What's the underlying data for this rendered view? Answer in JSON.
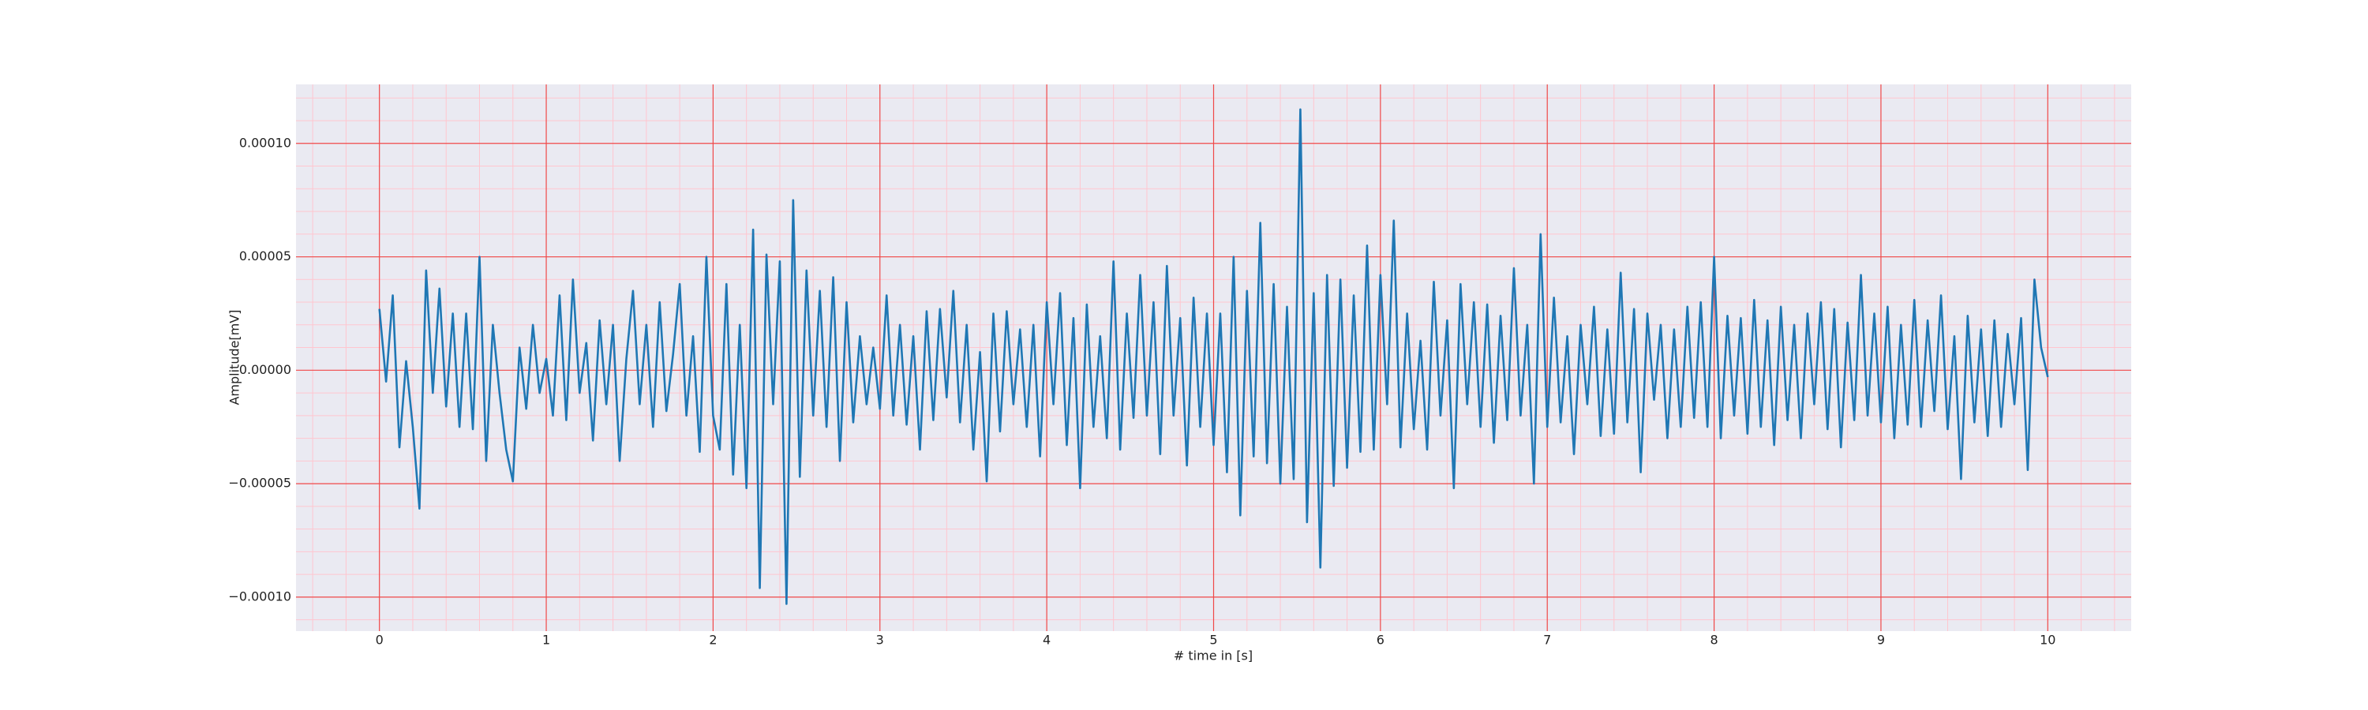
{
  "chart_data": {
    "type": "line",
    "xlabel": "# time in [s]",
    "ylabel": "Amplitude[mV]",
    "color": "#1f77b4",
    "grid": true,
    "minor_grid": true,
    "xlim": [
      -0.5,
      10.5
    ],
    "ylim": [
      -0.000115,
      0.000126
    ],
    "xticks": [
      0,
      1,
      2,
      3,
      4,
      5,
      6,
      7,
      8,
      9,
      10
    ],
    "yticks": [
      {
        "value": -0.0001,
        "label": "−0.00010"
      },
      {
        "value": -5e-05,
        "label": "−0.00005"
      },
      {
        "value": 0,
        "label": "0.00000"
      },
      {
        "value": 5e-05,
        "label": "0.00005"
      },
      {
        "value": 0.0001,
        "label": "0.00010"
      }
    ],
    "xminorticks": [
      -0.4,
      -0.2,
      0.2,
      0.4,
      0.6,
      0.8,
      1.2,
      1.4,
      1.6,
      1.8,
      2.2,
      2.4,
      2.6,
      2.8,
      3.2,
      3.4,
      3.6,
      3.8,
      4.2,
      4.4,
      4.6,
      4.8,
      5.2,
      5.4,
      5.6,
      5.8,
      6.2,
      6.4,
      6.6,
      6.8,
      7.2,
      7.4,
      7.6,
      7.8,
      8.2,
      8.4,
      8.6,
      8.8,
      9.2,
      9.4,
      9.6,
      9.8,
      10.2,
      10.4
    ],
    "yminorticks": [
      -0.00011,
      -9e-05,
      -8e-05,
      -7e-05,
      -6e-05,
      -4e-05,
      -3e-05,
      -2e-05,
      -1e-05,
      1e-05,
      2e-05,
      3e-05,
      4e-05,
      6e-05,
      7e-05,
      8e-05,
      9e-05,
      0.00011,
      0.00012
    ],
    "x": [
      0,
      0.04,
      0.08,
      0.12,
      0.16,
      0.2,
      0.24,
      0.28,
      0.32,
      0.36,
      0.4,
      0.44,
      0.48,
      0.52,
      0.56,
      0.6,
      0.64,
      0.68,
      0.72,
      0.76,
      0.8,
      0.84,
      0.88,
      0.92,
      0.96,
      1,
      1.04,
      1.08,
      1.12,
      1.16,
      1.2,
      1.24,
      1.28,
      1.32,
      1.36,
      1.4,
      1.44,
      1.48,
      1.52,
      1.56,
      1.6,
      1.64,
      1.68,
      1.72,
      1.76,
      1.8,
      1.84,
      1.88,
      1.92,
      1.96,
      2,
      2.04,
      2.08,
      2.12,
      2.16,
      2.2,
      2.24,
      2.28,
      2.32,
      2.36,
      2.4,
      2.44,
      2.48,
      2.52,
      2.56,
      2.6,
      2.64,
      2.68,
      2.72,
      2.76,
      2.8,
      2.84,
      2.88,
      2.92,
      2.96,
      3,
      3.04,
      3.08,
      3.12,
      3.16,
      3.2,
      3.24,
      3.28,
      3.32,
      3.36,
      3.4,
      3.44,
      3.48,
      3.52,
      3.56,
      3.6,
      3.64,
      3.68,
      3.72,
      3.76,
      3.8,
      3.84,
      3.88,
      3.92,
      3.96,
      4,
      4.04,
      4.08,
      4.12,
      4.16,
      4.2,
      4.24,
      4.28,
      4.32,
      4.36,
      4.4,
      4.44,
      4.48,
      4.52,
      4.56,
      4.6,
      4.64,
      4.68,
      4.72,
      4.76,
      4.8,
      4.84,
      4.88,
      4.92,
      4.96,
      5,
      5.04,
      5.08,
      5.12,
      5.16,
      5.2,
      5.24,
      5.28,
      5.32,
      5.36,
      5.4,
      5.44,
      5.48,
      5.52,
      5.56,
      5.6,
      5.64,
      5.68,
      5.72,
      5.76,
      5.8,
      5.84,
      5.88,
      5.92,
      5.96,
      6,
      6.04,
      6.08,
      6.12,
      6.16,
      6.2,
      6.24,
      6.28,
      6.32,
      6.36,
      6.4,
      6.44,
      6.48,
      6.52,
      6.56,
      6.6,
      6.64,
      6.68,
      6.72,
      6.76,
      6.8,
      6.84,
      6.88,
      6.92,
      6.96,
      7,
      7.04,
      7.08,
      7.12,
      7.16,
      7.2,
      7.24,
      7.28,
      7.32,
      7.36,
      7.4,
      7.44,
      7.48,
      7.52,
      7.56,
      7.6,
      7.64,
      7.68,
      7.72,
      7.76,
      7.8,
      7.84,
      7.88,
      7.92,
      7.96,
      8,
      8.04,
      8.08,
      8.12,
      8.16,
      8.2,
      8.24,
      8.28,
      8.32,
      8.36,
      8.4,
      8.44,
      8.48,
      8.52,
      8.56,
      8.6,
      8.64,
      8.68,
      8.72,
      8.76,
      8.8,
      8.84,
      8.88,
      8.92,
      8.96,
      9,
      9.04,
      9.08,
      9.12,
      9.16,
      9.2,
      9.24,
      9.28,
      9.32,
      9.36,
      9.4,
      9.44,
      9.48,
      9.52,
      9.56,
      9.6,
      9.64,
      9.68,
      9.72,
      9.76,
      9.8,
      9.84,
      9.88,
      9.92,
      9.96,
      10
    ],
    "values": [
      2.7e-05,
      -5e-06,
      3.3e-05,
      -3.4e-05,
      4e-06,
      -2.5e-05,
      -6.1e-05,
      4.4e-05,
      -1e-05,
      3.6e-05,
      -1.6e-05,
      2.5e-05,
      -2.5e-05,
      2.5e-05,
      -2.6e-05,
      5e-05,
      -4e-05,
      2e-05,
      -1e-05,
      -3.5e-05,
      -4.9e-05,
      1e-05,
      -1.7e-05,
      2e-05,
      -1e-05,
      5e-06,
      -2e-05,
      3.3e-05,
      -2.2e-05,
      4e-05,
      -1e-05,
      1.2e-05,
      -3.1e-05,
      2.2e-05,
      -1.5e-05,
      2e-05,
      -4e-05,
      5e-06,
      3.5e-05,
      -1.5e-05,
      2e-05,
      -2.5e-05,
      3e-05,
      -1.8e-05,
      7e-06,
      3.8e-05,
      -2e-05,
      1.5e-05,
      -3.6e-05,
      5e-05,
      -2e-05,
      -3.5e-05,
      3.8e-05,
      -4.6e-05,
      2e-05,
      -5.2e-05,
      6.2e-05,
      -9.6e-05,
      5.1e-05,
      -1.5e-05,
      4.8e-05,
      -0.000103,
      7.5e-05,
      -4.7e-05,
      4.4e-05,
      -2e-05,
      3.5e-05,
      -2.5e-05,
      4.1e-05,
      -4e-05,
      3e-05,
      -2.3e-05,
      1.5e-05,
      -1.5e-05,
      1e-05,
      -1.7e-05,
      3.3e-05,
      -2e-05,
      2e-05,
      -2.4e-05,
      1.5e-05,
      -3.5e-05,
      2.6e-05,
      -2.2e-05,
      2.7e-05,
      -1.2e-05,
      3.5e-05,
      -2.3e-05,
      2e-05,
      -3.5e-05,
      8e-06,
      -4.9e-05,
      2.5e-05,
      -2.7e-05,
      2.6e-05,
      -1.5e-05,
      1.8e-05,
      -2.5e-05,
      2e-05,
      -3.8e-05,
      3e-05,
      -1.5e-05,
      3.4e-05,
      -3.3e-05,
      2.3e-05,
      -5.2e-05,
      2.9e-05,
      -2.5e-05,
      1.5e-05,
      -3e-05,
      4.8e-05,
      -3.5e-05,
      2.5e-05,
      -2.1e-05,
      4.2e-05,
      -2e-05,
      3e-05,
      -3.7e-05,
      4.6e-05,
      -2e-05,
      2.3e-05,
      -4.2e-05,
      3.2e-05,
      -2.5e-05,
      2.5e-05,
      -3.3e-05,
      2.5e-05,
      -4.5e-05,
      5e-05,
      -6.4e-05,
      3.5e-05,
      -3.8e-05,
      6.5e-05,
      -4.1e-05,
      3.8e-05,
      -5e-05,
      2.8e-05,
      -4.8e-05,
      0.000115,
      -6.7e-05,
      3.4e-05,
      -8.7e-05,
      4.2e-05,
      -5.1e-05,
      4e-05,
      -4.3e-05,
      3.3e-05,
      -3.6e-05,
      5.5e-05,
      -3.5e-05,
      4.2e-05,
      -1.5e-05,
      6.6e-05,
      -3.4e-05,
      2.5e-05,
      -2.6e-05,
      1.3e-05,
      -3.5e-05,
      3.9e-05,
      -2e-05,
      2.2e-05,
      -5.2e-05,
      3.8e-05,
      -1.5e-05,
      3e-05,
      -2.5e-05,
      2.9e-05,
      -3.2e-05,
      2.4e-05,
      -2.2e-05,
      4.5e-05,
      -2e-05,
      2e-05,
      -5e-05,
      6e-05,
      -2.5e-05,
      3.2e-05,
      -2.3e-05,
      1.5e-05,
      -3.7e-05,
      2e-05,
      -1.5e-05,
      2.8e-05,
      -2.9e-05,
      1.8e-05,
      -2.8e-05,
      4.3e-05,
      -2.3e-05,
      2.7e-05,
      -4.5e-05,
      2.5e-05,
      -1.3e-05,
      2e-05,
      -3e-05,
      1.8e-05,
      -2.5e-05,
      2.8e-05,
      -2.1e-05,
      3e-05,
      -2.5e-05,
      5e-05,
      -3e-05,
      2.4e-05,
      -2e-05,
      2.3e-05,
      -2.8e-05,
      3.1e-05,
      -2.5e-05,
      2.2e-05,
      -3.3e-05,
      2.8e-05,
      -2.2e-05,
      2e-05,
      -3e-05,
      2.5e-05,
      -1.5e-05,
      3e-05,
      -2.6e-05,
      2.7e-05,
      -3.4e-05,
      2.1e-05,
      -2.2e-05,
      4.2e-05,
      -2e-05,
      2.5e-05,
      -2.3e-05,
      2.8e-05,
      -3e-05,
      2e-05,
      -2.4e-05,
      3.1e-05,
      -2.5e-05,
      2.2e-05,
      -1.8e-05,
      3.3e-05,
      -2.6e-05,
      1.5e-05,
      -4.8e-05,
      2.4e-05,
      -2.3e-05,
      1.8e-05,
      -2.9e-05,
      2.2e-05,
      -2.5e-05,
      1.6e-05,
      -1.5e-05,
      2.3e-05,
      -4.4e-05,
      4e-05,
      1e-05,
      -3e-06
    ]
  }
}
